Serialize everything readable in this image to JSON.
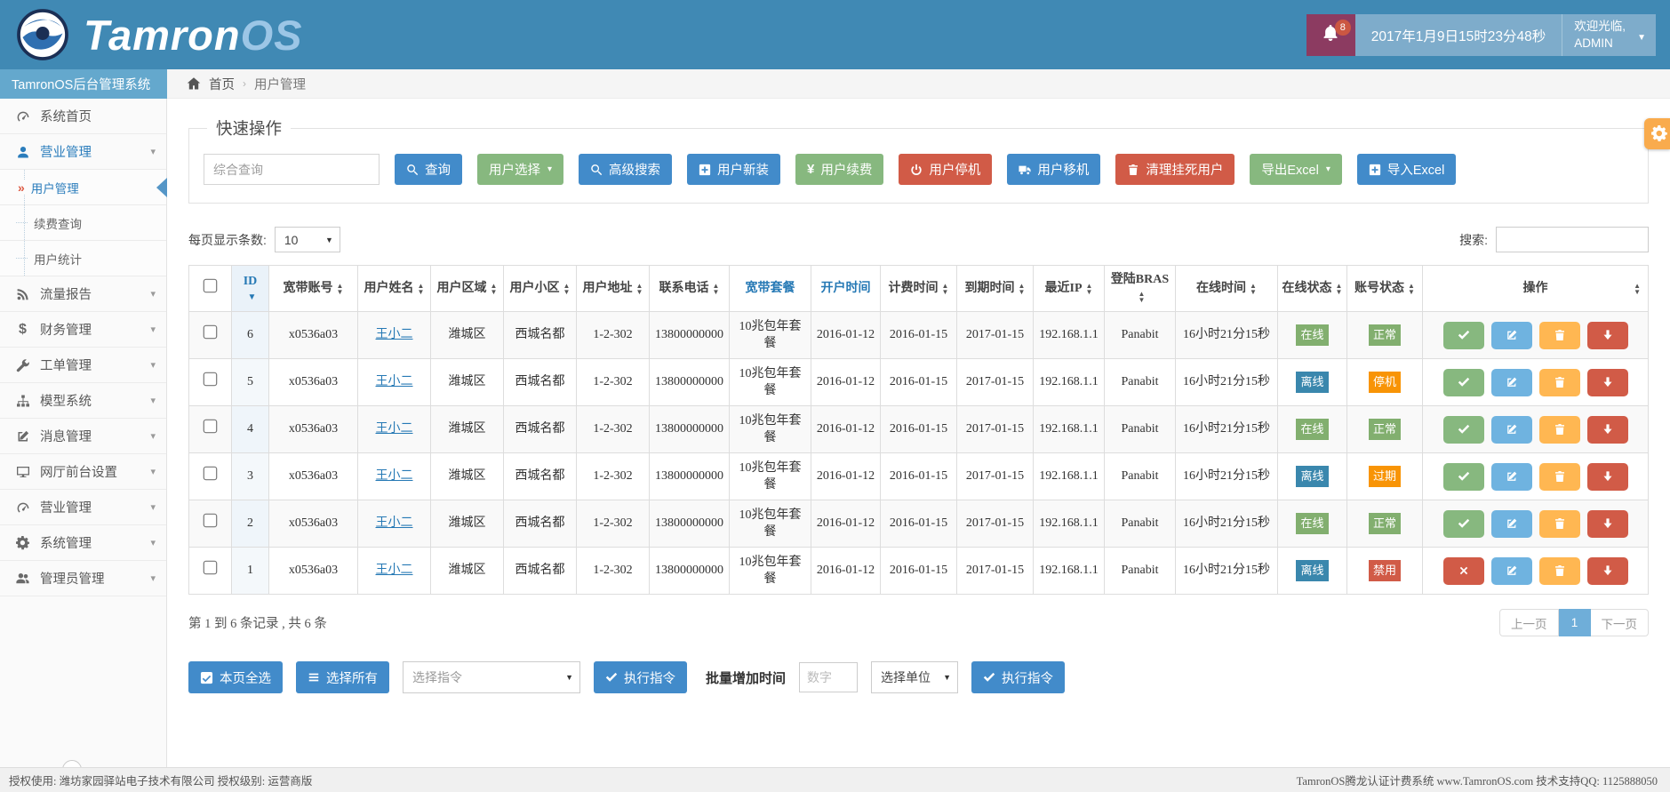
{
  "topbar": {
    "brand": "Tamron",
    "brand_accent": "OS",
    "notif_count": "8",
    "datetime": "2017年1月9日15时23分48秒",
    "welcome": "欢迎光临,",
    "username": "ADMIN"
  },
  "sidebar": {
    "title": "TamronOS后台管理系统",
    "collapse_glyph": "«",
    "items": [
      {
        "icon": "gauge",
        "label": "系统首页",
        "type": "item"
      },
      {
        "icon": "user",
        "label": "营业管理",
        "type": "group",
        "chevron": true
      },
      {
        "icon": "angles",
        "label": "用户管理",
        "type": "sub",
        "active": true
      },
      {
        "icon": "dots",
        "label": "续费查询",
        "type": "sub"
      },
      {
        "icon": "dots",
        "label": "用户统计",
        "type": "sub"
      },
      {
        "icon": "rss",
        "label": "流量报告",
        "type": "item",
        "chevron": true
      },
      {
        "icon": "dollar",
        "label": "财务管理",
        "type": "item",
        "chevron": true
      },
      {
        "icon": "wrench",
        "label": "工单管理",
        "type": "item",
        "chevron": true
      },
      {
        "icon": "sitemap",
        "label": "模型系统",
        "type": "item",
        "chevron": true
      },
      {
        "icon": "edit",
        "label": "消息管理",
        "type": "item",
        "chevron": true
      },
      {
        "icon": "desktop",
        "label": "网厅前台设置",
        "type": "item",
        "chevron": true
      },
      {
        "icon": "gauge",
        "label": "营业管理",
        "type": "item",
        "chevron": true
      },
      {
        "icon": "gears",
        "label": "系统管理",
        "type": "item",
        "chevron": true
      },
      {
        "icon": "users",
        "label": "管理员管理",
        "type": "item",
        "chevron": true
      }
    ]
  },
  "breadcrumb": {
    "home_label": "首页",
    "separator": "›",
    "current": "用户管理"
  },
  "quickops": {
    "legend": "快速操作",
    "search_placeholder": "综合查询",
    "buttons": [
      {
        "label": "查询",
        "icon": "search",
        "color": "blue"
      },
      {
        "label": "用户选择",
        "icon": "",
        "color": "green",
        "caret": true
      },
      {
        "label": "高级搜索",
        "icon": "search",
        "color": "blue"
      },
      {
        "label": "用户新装",
        "icon": "plus",
        "color": "blue"
      },
      {
        "label": "用户续费",
        "icon": "yen",
        "color": "green"
      },
      {
        "label": "用户停机",
        "icon": "power",
        "color": "red"
      },
      {
        "label": "用户移机",
        "icon": "truck",
        "color": "blue"
      },
      {
        "label": "清理挂死用户",
        "icon": "trash",
        "color": "red"
      },
      {
        "label": "导出Excel",
        "icon": "",
        "color": "green",
        "caret": true
      },
      {
        "label": "导入Excel",
        "icon": "plus",
        "color": "blue"
      }
    ]
  },
  "list_controls": {
    "page_size_label": "每页显示条数:",
    "page_size_value": "10",
    "search_label": "搜索:"
  },
  "table": {
    "headers": [
      {
        "label": "",
        "type": "checkbox"
      },
      {
        "label": "ID",
        "sort": "desc",
        "highlight": true
      },
      {
        "label": "宽带账号",
        "sort": "both"
      },
      {
        "label": "用户姓名",
        "sort": "both"
      },
      {
        "label": "用户区域",
        "sort": "both"
      },
      {
        "label": "用户小区",
        "sort": "both"
      },
      {
        "label": "用户地址",
        "sort": "both"
      },
      {
        "label": "联系电话",
        "sort": "both"
      },
      {
        "label": "宽带套餐",
        "link": true
      },
      {
        "label": "开户时间",
        "link": true
      },
      {
        "label": "计费时间",
        "sort": "both"
      },
      {
        "label": "到期时间",
        "sort": "both"
      },
      {
        "label": "最近IP",
        "sort": "both"
      },
      {
        "label": "登陆BRAS",
        "sort": "both"
      },
      {
        "label": "在线时间",
        "sort": "both"
      },
      {
        "label": "在线状态",
        "sort": "both"
      },
      {
        "label": "账号状态",
        "sort": "both"
      },
      {
        "label": "操作",
        "sort": "both"
      }
    ],
    "rows": [
      {
        "id": "6",
        "account": "x0536a03",
        "name": "王小二",
        "region": "潍城区",
        "community": "西城名都",
        "address": "1-2-302",
        "phone": "13800000000",
        "plan": "10兆包年套餐",
        "open_date": "2016-01-12",
        "bill_date": "2016-01-15",
        "expire_date": "2017-01-15",
        "ip": "192.168.1.1",
        "bras": "Panabit",
        "online_time": "16小时21分15秒",
        "online_status": "在线",
        "online_color": "green",
        "account_status": "正常",
        "account_color": "green",
        "primary_action": "check"
      },
      {
        "id": "5",
        "account": "x0536a03",
        "name": "王小二",
        "region": "潍城区",
        "community": "西城名都",
        "address": "1-2-302",
        "phone": "13800000000",
        "plan": "10兆包年套餐",
        "open_date": "2016-01-12",
        "bill_date": "2016-01-15",
        "expire_date": "2017-01-15",
        "ip": "192.168.1.1",
        "bras": "Panabit",
        "online_time": "16小时21分15秒",
        "online_status": "离线",
        "online_color": "blue",
        "account_status": "停机",
        "account_color": "orange",
        "primary_action": "check"
      },
      {
        "id": "4",
        "account": "x0536a03",
        "name": "王小二",
        "region": "潍城区",
        "community": "西城名都",
        "address": "1-2-302",
        "phone": "13800000000",
        "plan": "10兆包年套餐",
        "open_date": "2016-01-12",
        "bill_date": "2016-01-15",
        "expire_date": "2017-01-15",
        "ip": "192.168.1.1",
        "bras": "Panabit",
        "online_time": "16小时21分15秒",
        "online_status": "在线",
        "online_color": "green",
        "account_status": "正常",
        "account_color": "green",
        "primary_action": "check"
      },
      {
        "id": "3",
        "account": "x0536a03",
        "name": "王小二",
        "region": "潍城区",
        "community": "西城名都",
        "address": "1-2-302",
        "phone": "13800000000",
        "plan": "10兆包年套餐",
        "open_date": "2016-01-12",
        "bill_date": "2016-01-15",
        "expire_date": "2017-01-15",
        "ip": "192.168.1.1",
        "bras": "Panabit",
        "online_time": "16小时21分15秒",
        "online_status": "离线",
        "online_color": "blue",
        "account_status": "过期",
        "account_color": "orange",
        "primary_action": "check"
      },
      {
        "id": "2",
        "account": "x0536a03",
        "name": "王小二",
        "region": "潍城区",
        "community": "西城名都",
        "address": "1-2-302",
        "phone": "13800000000",
        "plan": "10兆包年套餐",
        "open_date": "2016-01-12",
        "bill_date": "2016-01-15",
        "expire_date": "2017-01-15",
        "ip": "192.168.1.1",
        "bras": "Panabit",
        "online_time": "16小时21分15秒",
        "online_status": "在线",
        "online_color": "green",
        "account_status": "正常",
        "account_color": "green",
        "primary_action": "check"
      },
      {
        "id": "1",
        "account": "x0536a03",
        "name": "王小二",
        "region": "潍城区",
        "community": "西城名都",
        "address": "1-2-302",
        "phone": "13800000000",
        "plan": "10兆包年套餐",
        "open_date": "2016-01-12",
        "bill_date": "2016-01-15",
        "expire_date": "2017-01-15",
        "ip": "192.168.1.1",
        "bras": "Panabit",
        "online_time": "16小时21分15秒",
        "online_status": "离线",
        "online_color": "blue",
        "account_status": "禁用",
        "account_color": "red",
        "primary_action": "x"
      }
    ]
  },
  "pagination": {
    "summary": "第 1 到 6 条记录 , 共 6 条",
    "prev": "上一页",
    "current": "1",
    "next": "下一页"
  },
  "batch": {
    "select_page": "本页全选",
    "select_all": "选择所有",
    "command_placeholder": "选择指令",
    "execute_label": "执行指令",
    "time_label": "批量增加时间",
    "number_placeholder": "数字",
    "unit_placeholder": "选择单位",
    "execute2_label": "执行指令"
  },
  "footer": {
    "left": "授权使用: 潍坊家园驿站电子技术有限公司  授权级别: 运营商版",
    "right": "TamronOS腾龙认证计费系统 www.TamronOS.com 技术支持QQ: 1125888050"
  },
  "colors": {
    "header_blue": "#4089b4",
    "subheader_blue": "#64a8cd",
    "widget_blue": "#7eaccb",
    "bell_maroon": "#8c3b61",
    "primary_blue": "#428bca",
    "success_green": "#87b87f",
    "danger_red": "#d15b47",
    "info_blue": "#6fb3e0",
    "warning_orange": "#ffb752",
    "badge_green": "#82af6f",
    "badge_blue": "#3a87ad",
    "badge_orange": "#f89406",
    "gear_orange": "#f9ab4d"
  }
}
